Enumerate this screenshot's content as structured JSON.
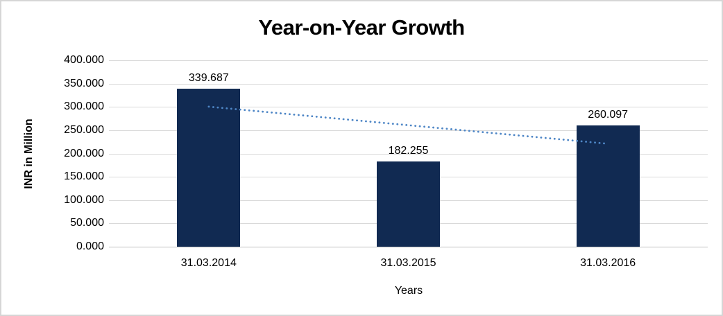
{
  "chart_data": {
    "type": "bar",
    "title": "Year-on-Year Growth",
    "xlabel": "Years",
    "ylabel": "INR in Million",
    "categories": [
      "31.03.2014",
      "31.03.2015",
      "31.03.2016"
    ],
    "values": [
      339.687,
      182.255,
      260.097
    ],
    "value_labels": [
      "339.687",
      "182.255",
      "260.097"
    ],
    "ylim": [
      0,
      400
    ],
    "ytick_step": 50,
    "ytick_labels": [
      "0.000",
      "50.000",
      "100.000",
      "150.000",
      "200.000",
      "250.000",
      "300.000",
      "350.000",
      "400.000"
    ],
    "grid": true,
    "legend": "none",
    "bar_color": "#112a52",
    "gridline_color": "#d9d9d9",
    "axis_line_color": "#bfbfbf",
    "frame_color": "#d6d6d6",
    "trendline": {
      "type": "linear",
      "style": "dotted",
      "color": "#4e86c6",
      "fitted_values": [
        300.5,
        260.7,
        220.9
      ]
    }
  }
}
